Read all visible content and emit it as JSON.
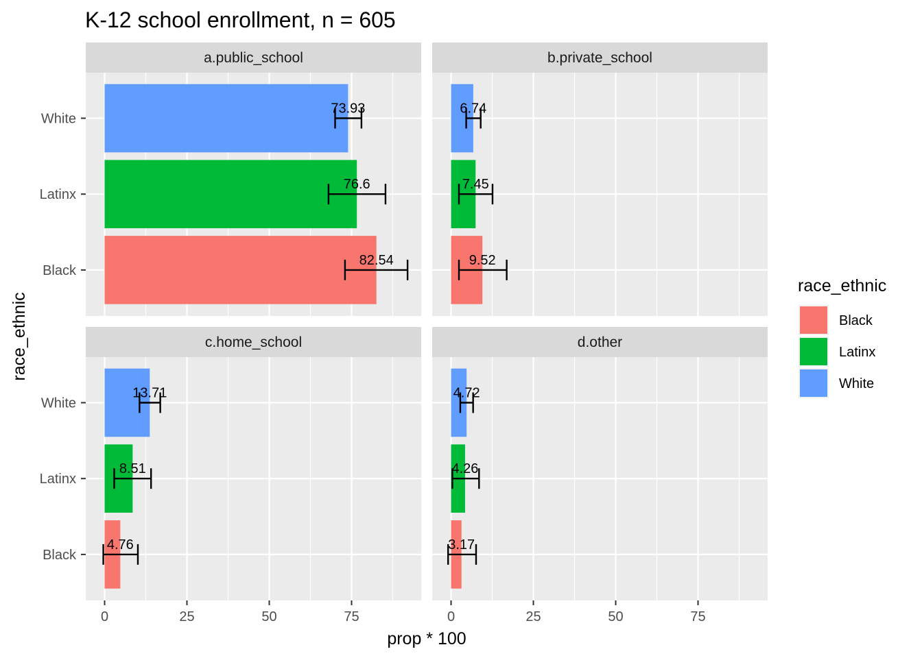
{
  "chart_data": {
    "type": "bar",
    "orientation": "horizontal",
    "title": "K-12 school enrollment, n = 605",
    "xlabel": "prop * 100",
    "ylabel": "race_ethnic",
    "xlim": [
      0,
      92
    ],
    "x_ticks": [
      "0",
      "25",
      "50",
      "75"
    ],
    "categories": [
      "White",
      "Latinx",
      "Black"
    ],
    "legend": {
      "title": "race_ethnic",
      "placement": "right",
      "entries": [
        {
          "label": "Black",
          "color": "#F8766D"
        },
        {
          "label": "Latinx",
          "color": "#00BA38"
        },
        {
          "label": "White",
          "color": "#619CFF"
        }
      ]
    },
    "colors": {
      "White": "#619CFF",
      "Latinx": "#00BA38",
      "Black": "#F8766D"
    },
    "panels": [
      {
        "label": "a.public_school",
        "bars": [
          {
            "category": "White",
            "value": 73.93,
            "label": "73.93",
            "err_low": 70.0,
            "err_high": 78.0
          },
          {
            "category": "Latinx",
            "value": 76.6,
            "label": "76.6",
            "err_low": 68.0,
            "err_high": 85.3
          },
          {
            "category": "Black",
            "value": 82.54,
            "label": "82.54",
            "err_low": 73.0,
            "err_high": 92.0
          }
        ]
      },
      {
        "label": "b.private_school",
        "bars": [
          {
            "category": "White",
            "value": 6.74,
            "label": "6.74",
            "err_low": 4.6,
            "err_high": 9.0
          },
          {
            "category": "Latinx",
            "value": 7.45,
            "label": "7.45",
            "err_low": 2.4,
            "err_high": 12.6
          },
          {
            "category": "Black",
            "value": 9.52,
            "label": "9.52",
            "err_low": 2.4,
            "err_high": 16.9
          }
        ]
      },
      {
        "label": "c.home_school",
        "bars": [
          {
            "category": "White",
            "value": 13.71,
            "label": "13.71",
            "err_low": 10.6,
            "err_high": 16.9
          },
          {
            "category": "Latinx",
            "value": 8.51,
            "label": "8.51",
            "err_low": 2.9,
            "err_high": 14.1
          },
          {
            "category": "Black",
            "value": 4.76,
            "label": "4.76",
            "err_low": -0.4,
            "err_high": 10.1
          }
        ]
      },
      {
        "label": "d.other",
        "bars": [
          {
            "category": "White",
            "value": 4.72,
            "label": "4.72",
            "err_low": 2.8,
            "err_high": 6.7
          },
          {
            "category": "Latinx",
            "value": 4.26,
            "label": "4.26",
            "err_low": 0.4,
            "err_high": 8.5
          },
          {
            "category": "Black",
            "value": 3.17,
            "label": "3.17",
            "err_low": -0.9,
            "err_high": 7.6
          }
        ]
      }
    ]
  }
}
